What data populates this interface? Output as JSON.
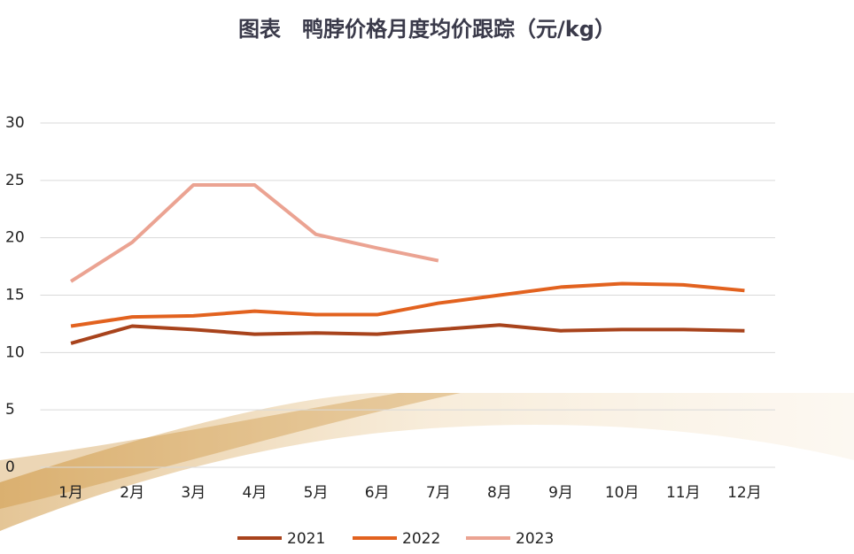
{
  "chart_data": {
    "type": "line",
    "title": "图表　鸭脖价格月度均价跟踪（元/kg）",
    "categories": [
      "1月",
      "2月",
      "3月",
      "4月",
      "5月",
      "6月",
      "7月",
      "8月",
      "9月",
      "10月",
      "11月",
      "12月"
    ],
    "series": [
      {
        "name": "2021",
        "color": "#a8431c",
        "values": [
          10.8,
          12.3,
          12.0,
          11.6,
          11.7,
          11.6,
          12.0,
          12.4,
          11.9,
          12.0,
          12.0,
          11.9
        ]
      },
      {
        "name": "2022",
        "color": "#e2621f",
        "values": [
          12.3,
          13.1,
          13.2,
          13.6,
          13.3,
          13.3,
          14.3,
          15.0,
          15.7,
          16.0,
          15.9,
          15.4
        ]
      },
      {
        "name": "2023",
        "color": "#eba392",
        "values": [
          16.2,
          19.6,
          24.6,
          24.6,
          20.3,
          19.1,
          18.0,
          null,
          null,
          null,
          null,
          null
        ]
      }
    ],
    "ylim": [
      0,
      30
    ],
    "yticks": [
      0,
      5,
      10,
      15,
      20,
      25,
      30
    ],
    "grid": true,
    "legend": "bottom"
  }
}
